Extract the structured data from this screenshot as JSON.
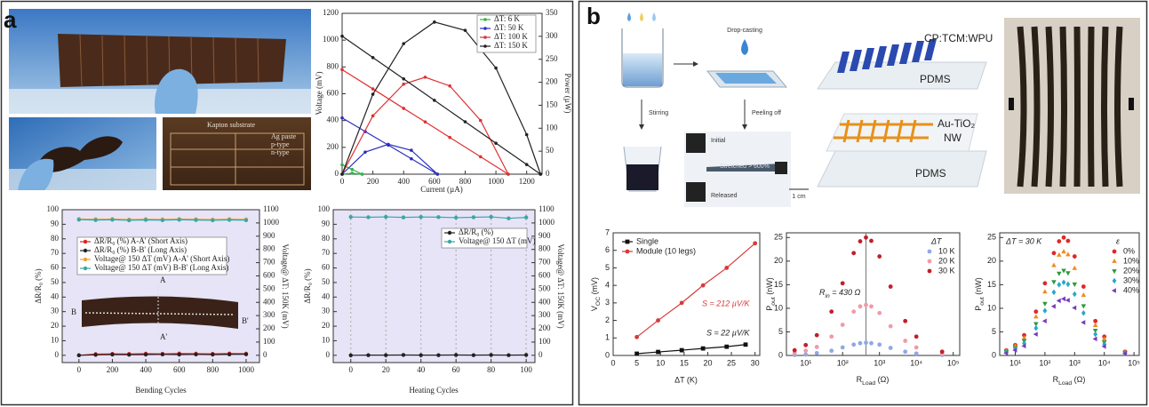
{
  "panel_a": {
    "label": "a",
    "photo_labels": [
      "Kapton substrate",
      "Ag paste",
      "p-type",
      "n-type"
    ],
    "inset_labels": [
      "A",
      "A'",
      "B",
      "B'"
    ]
  },
  "panel_b": {
    "label": "b",
    "steps": [
      "Drop-casting",
      "Stirring",
      "Peeling off"
    ],
    "film_labels": [
      "Initial",
      "Stretched > 600%",
      "Released"
    ],
    "scale_bar": "1 cm",
    "layers": [
      "CP:TCM:WPU",
      "PDMS",
      "Au-TiO₂",
      "NW",
      "PDMS"
    ]
  },
  "chart_data": [
    {
      "type": "line",
      "xlabel": "Current (µA)",
      "ylabel": "Voltage (mV)",
      "y2label": "Power (µW)",
      "xlim": [
        0,
        1300
      ],
      "xticks": [
        0,
        200,
        400,
        600,
        800,
        1000,
        1200
      ],
      "ylim": [
        0,
        1200
      ],
      "yticks": [
        0,
        200,
        400,
        600,
        800,
        1000,
        1200
      ],
      "y2lim": [
        0,
        350
      ],
      "y2ticks": [
        0,
        50,
        100,
        150,
        200,
        250,
        300,
        350
      ],
      "series": [
        {
          "name": "ΔT: 6 K",
          "color": "#2fb34a",
          "x": [
            0,
            65,
            130
          ],
          "values": [
            70,
            35,
            0
          ],
          "power_values": [
            0,
            2,
            0
          ]
        },
        {
          "name": "ΔT: 50 K",
          "color": "#2b2fbf",
          "x": [
            0,
            150,
            300,
            450,
            620
          ],
          "values": [
            420,
            318,
            217,
            115,
            0
          ],
          "power_values": [
            0,
            48,
            65,
            52,
            0
          ]
        },
        {
          "name": "ΔT: 100 K",
          "color": "#e03030",
          "x": [
            0,
            200,
            400,
            540,
            700,
            900,
            1080
          ],
          "values": [
            780,
            636,
            491,
            390,
            274,
            130,
            0
          ],
          "power_values": [
            0,
            127,
            196,
            211,
            192,
            117,
            0
          ]
        },
        {
          "name": "ΔT: 150 K",
          "color": "#222222",
          "x": [
            0,
            200,
            400,
            600,
            800,
            1000,
            1200,
            1290
          ],
          "values": [
            1030,
            870,
            711,
            551,
            391,
            231,
            72,
            0
          ],
          "power_values": [
            0,
            174,
            284,
            331,
            313,
            231,
            86,
            0
          ]
        }
      ]
    },
    {
      "type": "line",
      "xlabel": "Bending Cycles",
      "ylabel": "ΔR/R₀ (%)",
      "y2label": "Voltage@ ΔT: 150K (mV)",
      "xlim": [
        -100,
        1080
      ],
      "xticks": [
        0,
        200,
        400,
        600,
        800,
        1000
      ],
      "ylim": [
        -5,
        100
      ],
      "yticks": [
        0,
        10,
        20,
        30,
        40,
        50,
        60,
        70,
        80,
        90,
        100
      ],
      "y2lim": [
        -55,
        1100
      ],
      "y2ticks": [
        0,
        100,
        200,
        300,
        400,
        500,
        600,
        700,
        800,
        900,
        1000,
        1100
      ],
      "x": [
        0,
        100,
        200,
        300,
        400,
        500,
        600,
        700,
        800,
        900,
        1000
      ],
      "series": [
        {
          "name": "ΔR/R₀ (%) A-A' (Short Axis)",
          "color": "#e02020",
          "values": [
            0,
            0.8,
            1.0,
            0.9,
            1.1,
            1.0,
            1.2,
            1.1,
            1.0,
            1.2,
            1.1
          ]
        },
        {
          "name": "ΔR/R₀ (%) B-B' (Long Axis)",
          "color": "#222222",
          "values": [
            0,
            0.3,
            0.5,
            0.4,
            0.5,
            0.6,
            0.5,
            0.6,
            0.5,
            0.6,
            0.7
          ]
        },
        {
          "name": "Voltage@ 150 ΔT (mV) A-A' (Short Axis)",
          "color": "#f0a030",
          "axis": "y2",
          "values": [
            1030,
            1028,
            1030,
            1026,
            1029,
            1027,
            1030,
            1028,
            1026,
            1029,
            1027
          ]
        },
        {
          "name": "Voltage@ 150 ΔT (mV) B-B' (Long Axis)",
          "color": "#3aa6a6",
          "axis": "y2",
          "values": [
            1025,
            1022,
            1024,
            1020,
            1023,
            1021,
            1024,
            1022,
            1020,
            1023,
            1021
          ]
        }
      ]
    },
    {
      "type": "line",
      "xlabel": "Heating Cycles",
      "ylabel": "ΔR/R₀ (%)",
      "y2label": "Voltage@ ΔT: 150K (mV)",
      "grid": "x",
      "xlim": [
        -10,
        105
      ],
      "xticks": [
        0,
        20,
        40,
        60,
        80,
        100
      ],
      "ylim": [
        -5,
        100
      ],
      "yticks": [
        0,
        10,
        20,
        30,
        40,
        50,
        60,
        70,
        80,
        90,
        100
      ],
      "y2lim": [
        -55,
        1100
      ],
      "y2ticks": [
        0,
        100,
        200,
        300,
        400,
        500,
        600,
        700,
        800,
        900,
        1000,
        1100
      ],
      "x": [
        0,
        10,
        20,
        30,
        40,
        50,
        60,
        70,
        80,
        90,
        100
      ],
      "series": [
        {
          "name": "ΔR/R₀ (%)",
          "color": "#222222",
          "values": [
            0,
            0.1,
            0.1,
            0.2,
            0.1,
            0.1,
            0.2,
            0.1,
            0.2,
            0.1,
            0.2
          ]
        },
        {
          "name": "Voltage@ 150 ΔT (mV)",
          "color": "#3aa6a6",
          "axis": "y2",
          "values": [
            1045,
            1043,
            1046,
            1042,
            1045,
            1044,
            1040,
            1043,
            1046,
            1035,
            1042
          ]
        }
      ]
    },
    {
      "type": "line",
      "xlabel": "ΔT (K)",
      "ylabel": [
        "V",
        "OC",
        " (mV)"
      ],
      "xlim": [
        0,
        31
      ],
      "xticks": [
        0,
        5,
        10,
        15,
        20,
        25,
        30
      ],
      "ylim": [
        0,
        7
      ],
      "yticks": [
        0,
        1,
        2,
        3,
        4,
        5,
        6,
        7
      ],
      "annotations": [
        {
          "text": "S = 212 µV/K",
          "color": "#d93a3a"
        },
        {
          "text": "S = 22 µV/K",
          "color": "#222222"
        }
      ],
      "series": [
        {
          "name": "Single",
          "color": "#111111",
          "marker": "square",
          "x": [
            5,
            9.5,
            14.5,
            19,
            24,
            28
          ],
          "values": [
            0.1,
            0.2,
            0.3,
            0.4,
            0.5,
            0.62
          ]
        },
        {
          "name": "Module (10 legs)",
          "color": "#d93a3a",
          "marker": "circle",
          "x": [
            5,
            9.5,
            14.5,
            19,
            24,
            30
          ],
          "values": [
            1.05,
            2.0,
            3.0,
            4.0,
            5.0,
            6.4
          ]
        }
      ]
    },
    {
      "type": "scatter",
      "xlabel": [
        "R",
        "Load",
        " (Ω)"
      ],
      "ylabel": [
        "P",
        "out",
        " (nW)"
      ],
      "xscale": "log",
      "legend_title": "ΔT",
      "xlim": [
        3,
        150000
      ],
      "xticks": [
        {
          "value": 10,
          "label": "10¹"
        },
        {
          "value": 100,
          "label": "10²"
        },
        {
          "value": 1000,
          "label": "10³"
        },
        {
          "value": 10000,
          "label": "10⁴"
        },
        {
          "value": 100000,
          "label": "10⁵"
        }
      ],
      "ylim": [
        0,
        26
      ],
      "yticks": [
        0,
        5,
        10,
        15,
        20,
        25
      ],
      "reference_x": 430,
      "annotations": [
        {
          "text": [
            "R",
            "in",
            " = 430 Ω"
          ],
          "color": "#222222"
        }
      ],
      "x": [
        5,
        10,
        20,
        50,
        100,
        200,
        300,
        430,
        600,
        1000,
        2000,
        5000,
        10000,
        50000
      ],
      "series": [
        {
          "name": "10 K",
          "color": "#8fa8e8",
          "values": [
            0.1,
            0.2,
            0.5,
            1.0,
            1.7,
            2.3,
            2.6,
            2.7,
            2.6,
            2.3,
            1.6,
            0.8,
            0.4,
            0.1
          ]
        },
        {
          "name": "20 K",
          "color": "#f09aa8",
          "values": [
            0.5,
            1.0,
            1.8,
            4.0,
            6.5,
            9.3,
            10.4,
            10.7,
            10.4,
            9.0,
            6.2,
            3.1,
            1.7,
            0.4
          ]
        },
        {
          "name": "30 K",
          "color": "#c0202a",
          "values": [
            1.1,
            2.2,
            4.3,
            9.3,
            15.3,
            21.7,
            24.2,
            25,
            24.3,
            21.0,
            14.6,
            7.3,
            4.0,
            0.8
          ]
        }
      ]
    },
    {
      "type": "scatter",
      "xlabel": [
        "R",
        "Load",
        " (Ω)"
      ],
      "ylabel": [
        "P",
        "out",
        " (nW)"
      ],
      "xscale": "log",
      "legend_title": "ε",
      "xlim": [
        3,
        150000
      ],
      "xticks": [
        {
          "value": 10,
          "label": "10¹"
        },
        {
          "value": 100,
          "label": "10²"
        },
        {
          "value": 1000,
          "label": "10³"
        },
        {
          "value": 10000,
          "label": "10⁴"
        },
        {
          "value": 100000,
          "label": "10⁵"
        }
      ],
      "ylim": [
        0,
        26
      ],
      "yticks": [
        0,
        5,
        10,
        15,
        20,
        25
      ],
      "annotations": [
        {
          "text": "ΔT = 30 K",
          "color": "#222222"
        }
      ],
      "x": [
        5,
        10,
        20,
        50,
        100,
        200,
        300,
        430,
        600,
        1000,
        2000,
        5000,
        10000,
        50000
      ],
      "series": [
        {
          "name": "0%",
          "color": "#e02828",
          "marker": "circle",
          "values": [
            1.1,
            2.2,
            4.3,
            9.3,
            15.3,
            21.7,
            24.2,
            25,
            24.3,
            21.0,
            14.6,
            7.3,
            4.0,
            0.8
          ]
        },
        {
          "name": "10%",
          "color": "#f08a20",
          "marker": "triangle-up",
          "values": [
            1.0,
            2.0,
            3.7,
            8.2,
            13.5,
            19.1,
            21.3,
            22,
            21.4,
            18.5,
            12.8,
            6.4,
            3.5,
            0.7
          ]
        },
        {
          "name": "20%",
          "color": "#2a9a3a",
          "marker": "triangle-down",
          "values": [
            0.8,
            1.6,
            3.1,
            6.7,
            11.0,
            15.6,
            17.4,
            18,
            17.5,
            15.1,
            10.5,
            5.3,
            2.8,
            0.6
          ]
        },
        {
          "name": "30%",
          "color": "#28a8c8",
          "marker": "diamond",
          "values": [
            0.7,
            1.4,
            2.6,
            5.8,
            9.5,
            13.4,
            15.0,
            15.5,
            15.1,
            13.0,
            9.0,
            4.5,
            2.4,
            0.5
          ]
        },
        {
          "name": "40%",
          "color": "#7a3ab8",
          "marker": "triangle-left",
          "values": [
            0.5,
            1.1,
            2.0,
            4.5,
            7.3,
            10.4,
            11.6,
            12,
            11.7,
            10.1,
            7.0,
            3.5,
            1.9,
            0.4
          ]
        }
      ]
    }
  ]
}
